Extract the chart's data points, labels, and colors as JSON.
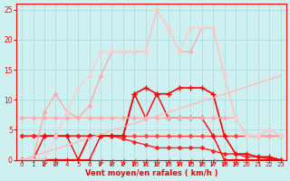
{
  "xlabel": "Vent moyen/en rafales ( km/h )",
  "background_color": "#cff0f0",
  "grid_color": "#aadddd",
  "xlim": [
    -0.5,
    23.5
  ],
  "ylim": [
    0,
    26
  ],
  "yticks": [
    0,
    5,
    10,
    15,
    20,
    25
  ],
  "xticks": [
    0,
    1,
    2,
    3,
    4,
    5,
    6,
    7,
    8,
    9,
    10,
    11,
    12,
    13,
    14,
    15,
    16,
    17,
    18,
    19,
    20,
    21,
    22,
    23
  ],
  "lines": [
    {
      "x": [
        0,
        1,
        2,
        3,
        4,
        5,
        6,
        7,
        8,
        9,
        10,
        11,
        12,
        13,
        14,
        15,
        16,
        17,
        18,
        19,
        20,
        21,
        22,
        23
      ],
      "y": [
        4,
        4,
        4,
        4,
        4,
        4,
        4,
        4,
        4,
        4,
        4,
        4,
        4,
        4,
        4,
        4,
        4,
        4,
        4,
        4,
        4,
        4,
        4,
        4
      ],
      "color": "#ff4444",
      "lw": 1.0,
      "marker": "D",
      "ms": 2
    },
    {
      "x": [
        0,
        1,
        2,
        3,
        4,
        5,
        6,
        7,
        8,
        9,
        10,
        11,
        12,
        13,
        14,
        15,
        16,
        17,
        18,
        19,
        20,
        21,
        22,
        23
      ],
      "y": [
        4,
        4,
        4,
        4,
        4,
        4,
        4,
        4,
        4,
        3.5,
        3,
        2.5,
        2,
        2,
        2,
        2,
        2,
        1.5,
        1,
        1,
        0.5,
        0.5,
        0.2,
        0
      ],
      "color": "#ff2222",
      "lw": 1.0,
      "marker": "D",
      "ms": 2
    },
    {
      "x": [
        0,
        1,
        2,
        3,
        4,
        5,
        6,
        7,
        8,
        9,
        10,
        11,
        12,
        13,
        14,
        15,
        16,
        17,
        18,
        19,
        20,
        21,
        22,
        23
      ],
      "y": [
        0,
        0,
        0,
        0,
        0,
        0,
        4,
        4,
        4,
        4,
        11,
        12,
        11,
        11,
        12,
        12,
        12,
        11,
        4,
        1,
        1,
        0.5,
        0.5,
        0
      ],
      "color": "#ff0000",
      "lw": 1.2,
      "marker": "+",
      "ms": 4
    },
    {
      "comment": "wavy line going 0->4->0->4->11->7->11->7->4->0, bright red",
      "x": [
        0,
        1,
        2,
        3,
        4,
        5,
        6,
        7,
        8,
        9,
        10,
        11,
        12,
        13,
        14,
        15,
        16,
        17,
        18,
        19,
        20,
        21,
        22,
        23
      ],
      "y": [
        0,
        0,
        4,
        4,
        4,
        0,
        0,
        4,
        4,
        4,
        11,
        7,
        11,
        7,
        7,
        7,
        7,
        4,
        0,
        0,
        0,
        0,
        0,
        0
      ],
      "color": "#ff0000",
      "lw": 1.0,
      "marker": "+",
      "ms": 4
    },
    {
      "x": [
        0,
        1,
        2,
        3,
        4,
        5,
        6,
        7,
        8,
        9,
        10,
        11,
        12,
        13,
        14,
        15,
        16,
        17,
        18,
        19,
        20,
        21,
        22,
        23
      ],
      "y": [
        7,
        7,
        7,
        7,
        7,
        7,
        7,
        7,
        7,
        7,
        7,
        7,
        7,
        7,
        7,
        7,
        7,
        7,
        7,
        7,
        4,
        4,
        4,
        4
      ],
      "color": "#ffaaaa",
      "lw": 1.0,
      "marker": "D",
      "ms": 2
    },
    {
      "x": [
        0,
        1,
        2,
        3,
        4,
        5,
        6,
        7,
        8,
        9,
        10,
        11,
        12,
        13,
        14,
        15,
        16,
        17,
        18,
        19,
        20,
        21,
        22,
        23
      ],
      "y": [
        0,
        0,
        8,
        11,
        8,
        7,
        9,
        14,
        18,
        18,
        18,
        18,
        25,
        22,
        18,
        18,
        22,
        22,
        14,
        7,
        4,
        4,
        5,
        4
      ],
      "color": "#ffaaaa",
      "lw": 1.0,
      "marker": "D",
      "ms": 2
    },
    {
      "x": [
        0,
        1,
        2,
        3,
        4,
        5,
        6,
        7,
        8,
        9,
        10,
        11,
        12,
        13,
        14,
        15,
        16,
        17,
        18,
        19,
        20,
        21,
        22,
        23
      ],
      "y": [
        0,
        0,
        0,
        4,
        8,
        12,
        14,
        18,
        18,
        18,
        18,
        18,
        25,
        22,
        18,
        22,
        22,
        22,
        14,
        7,
        4,
        4,
        5,
        4
      ],
      "color": "#ffcccc",
      "lw": 1.0,
      "marker": "D",
      "ms": 2
    },
    {
      "x": [
        0,
        23
      ],
      "y": [
        0,
        14
      ],
      "color": "#ffbbbb",
      "lw": 1.0,
      "marker": null,
      "ms": 0
    }
  ],
  "arrows": [
    2,
    3,
    7,
    8,
    9,
    10,
    11,
    12,
    13,
    14,
    15,
    16,
    17,
    18,
    19
  ]
}
